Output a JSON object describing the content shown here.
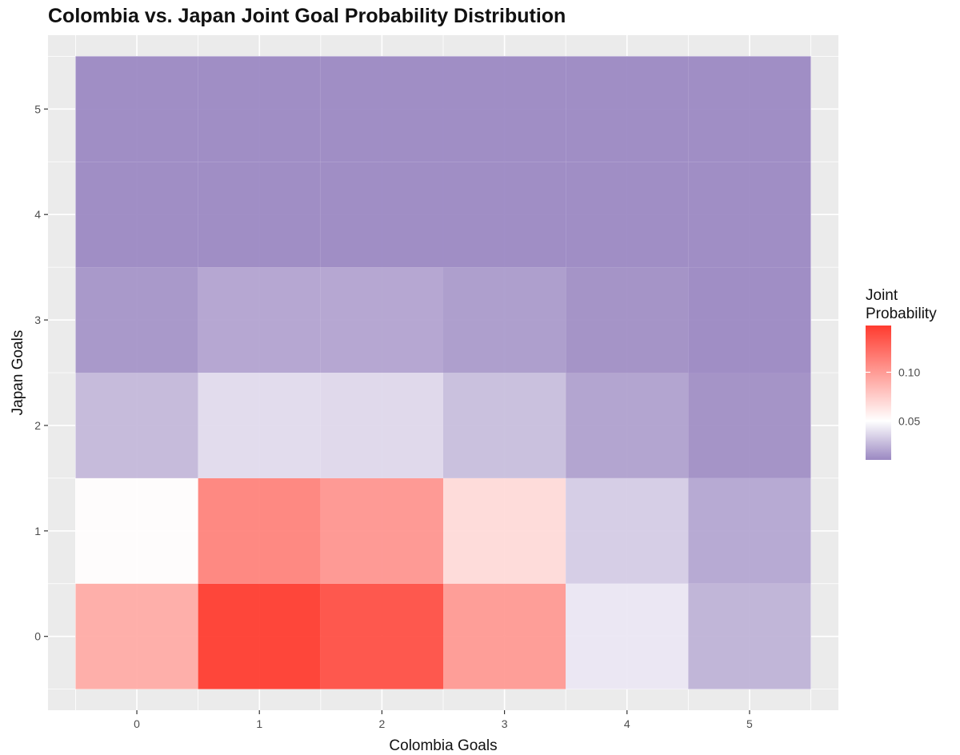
{
  "chart_data": {
    "type": "heatmap",
    "title": "Colombia vs. Japan Joint Goal Probability Distribution",
    "xlabel": "Colombia Goals",
    "ylabel": "Japan Goals",
    "x": [
      0,
      1,
      2,
      3,
      4,
      5
    ],
    "y": [
      0,
      1,
      2,
      3,
      4,
      5
    ],
    "xlim": [
      -0.5,
      5.5
    ],
    "ylim": [
      -0.5,
      5.5
    ],
    "grid": true,
    "values": [
      [
        0.092,
        0.148,
        0.138,
        0.101,
        0.042,
        0.024
      ],
      [
        0.051,
        0.112,
        0.103,
        0.068,
        0.033,
        0.02
      ],
      [
        0.026,
        0.038,
        0.037,
        0.028,
        0.018,
        0.012
      ],
      [
        0.014,
        0.019,
        0.019,
        0.016,
        0.012,
        0.01
      ],
      [
        0.01,
        0.01,
        0.01,
        0.01,
        0.01,
        0.01
      ],
      [
        0.01,
        0.01,
        0.01,
        0.01,
        0.01,
        0.01
      ]
    ],
    "legend": {
      "title_line1": "Joint",
      "title_line2": "Probability",
      "ticks": [
        0.05,
        0.1
      ],
      "tick_labels": [
        "0.05",
        "0.10"
      ],
      "range": [
        0.01,
        0.148
      ],
      "low_color": "#9b88c2",
      "mid_color": "#ffffff",
      "mid_value": 0.05,
      "high_color": "#ff3b2f",
      "placement": "right"
    },
    "x_tick_labels": [
      "0",
      "1",
      "2",
      "3",
      "4",
      "5"
    ],
    "y_tick_labels": [
      "0",
      "1",
      "2",
      "3",
      "4",
      "5"
    ],
    "panel_color": "#ebebeb",
    "grid_color": "#ffffff"
  }
}
